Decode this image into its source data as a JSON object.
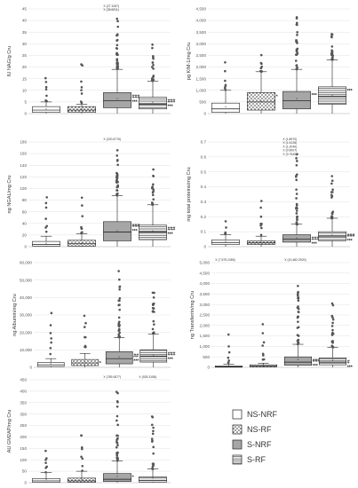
{
  "legend": [
    {
      "label": "NS-NRF",
      "pattern": "plain"
    },
    {
      "label": "NS-RF",
      "pattern": "dots"
    },
    {
      "label": "S-NRF",
      "pattern": "gray"
    },
    {
      "label": "S-RF",
      "pattern": "lines"
    }
  ],
  "chart_data": [
    {
      "type": "box",
      "ylabel": "IU NAG/g Cru",
      "ylim": [
        0,
        45
      ],
      "yticks": [
        "0",
        "5",
        "10",
        "15",
        "20",
        "25",
        "30",
        "35",
        "40",
        "45"
      ],
      "groups": [
        "NS-NRF",
        "NS-RF",
        "S-NRF",
        "S-RF"
      ],
      "boxes": [
        {
          "q1": 0.5,
          "median": 1.5,
          "q3": 3,
          "wlo": 0,
          "whi": 5,
          "mean": 2
        },
        {
          "q1": 0.5,
          "median": 1.5,
          "q3": 3,
          "wlo": 0,
          "whi": 4,
          "mean": 2
        },
        {
          "q1": 2.5,
          "median": 5.5,
          "q3": 9,
          "wlo": 0,
          "whi": 19,
          "mean": 6.5
        },
        {
          "q1": 2,
          "median": 4,
          "q3": 7,
          "wlo": 0,
          "whi": 14,
          "mean": 5
        }
      ],
      "annotations": [
        {
          "group": 2,
          "text": "X (27.1067)"
        },
        {
          "group": 2,
          "text": "X (35.6811)"
        }
      ],
      "significance": [
        {
          "group": 2,
          "lines": [
            "###",
            "***"
          ]
        },
        {
          "group": 3,
          "lines": [
            "###",
            "***"
          ]
        }
      ]
    },
    {
      "type": "box",
      "ylabel": "pg KIM-1/mg Cru",
      "ylim": [
        0,
        4500
      ],
      "yticks": [
        "0",
        "500",
        "1,000",
        "1,500",
        "2,000",
        "2,500",
        "3,000",
        "3,500",
        "4,000",
        "4,500"
      ],
      "groups": [
        "NS-NRF",
        "NS-RF",
        "S-NRF",
        "S-RF"
      ],
      "boxes": [
        {
          "q1": 50,
          "median": 200,
          "q3": 450,
          "wlo": 0,
          "whi": 1000,
          "mean": 300
        },
        {
          "q1": 150,
          "median": 500,
          "q3": 900,
          "wlo": 0,
          "whi": 1800,
          "mean": 550
        },
        {
          "q1": 200,
          "median": 550,
          "q3": 950,
          "wlo": 0,
          "whi": 1900,
          "mean": 650
        },
        {
          "q1": 400,
          "median": 750,
          "q3": 1150,
          "wlo": 0,
          "whi": 2300,
          "mean": 800
        }
      ],
      "annotations": [],
      "significance": [
        {
          "group": 1,
          "lines": [
            "*"
          ]
        },
        {
          "group": 2,
          "lines": [
            "***"
          ]
        },
        {
          "group": 3,
          "lines": [
            "***"
          ]
        }
      ]
    },
    {
      "type": "box",
      "ylabel": "ng NGAL/mg Cru",
      "ylim": [
        0,
        180
      ],
      "yticks": [
        "0",
        "20",
        "40",
        "60",
        "80",
        "100",
        "120",
        "140",
        "160",
        "180"
      ],
      "groups": [
        "NS-NRF",
        "NS-RF",
        "S-NRF",
        "S-RF"
      ],
      "boxes": [
        {
          "q1": 1,
          "median": 4,
          "q3": 9,
          "wlo": 0,
          "whi": 18,
          "mean": 6
        },
        {
          "q1": 1,
          "median": 5,
          "q3": 11,
          "wlo": 0,
          "whi": 22,
          "mean": 7
        },
        {
          "q1": 10,
          "median": 25,
          "q3": 43,
          "wlo": 0,
          "whi": 88,
          "mean": 28
        },
        {
          "q1": 12,
          "median": 25,
          "q3": 37,
          "wlo": 0,
          "whi": 72,
          "mean": 27
        }
      ],
      "annotations": [
        {
          "group": 2,
          "text": "X (220.6776)"
        }
      ],
      "significance": [
        {
          "group": 2,
          "lines": [
            "###",
            "***"
          ]
        },
        {
          "group": 3,
          "lines": [
            "###",
            "***"
          ]
        }
      ]
    },
    {
      "type": "box",
      "ylabel": "mg total proteins/mg Cru",
      "ylim": [
        0,
        0.7
      ],
      "yticks": [
        "0",
        "0.1",
        "0.2",
        "0.3",
        "0.4",
        "0.5",
        "0.6",
        "0.7"
      ],
      "groups": [
        "NS-NRF",
        "NS-RF",
        "S-NRF",
        "S-RF"
      ],
      "boxes": [
        {
          "q1": 0.015,
          "median": 0.028,
          "q3": 0.045,
          "wlo": 0,
          "whi": 0.08,
          "mean": 0.035
        },
        {
          "q1": 0.015,
          "median": 0.025,
          "q3": 0.04,
          "wlo": 0,
          "whi": 0.07,
          "mean": 0.03
        },
        {
          "q1": 0.03,
          "median": 0.05,
          "q3": 0.08,
          "wlo": 0,
          "whi": 0.15,
          "mean": 0.06
        },
        {
          "q1": 0.04,
          "median": 0.07,
          "q3": 0.1,
          "wlo": 0,
          "whi": 0.19,
          "mean": 0.08
        }
      ],
      "annotations": [
        {
          "group": 2,
          "text": "X (1.8970)"
        },
        {
          "group": 2,
          "text": "X (1.5128)"
        },
        {
          "group": 2,
          "text": "X (1.2040)"
        },
        {
          "group": 2,
          "text": "X (0.9007)"
        },
        {
          "group": 2,
          "text": "X (0.7545)"
        }
      ],
      "significance": [
        {
          "group": 2,
          "lines": [
            "###",
            "***"
          ]
        },
        {
          "group": 3,
          "lines": [
            "###",
            "***"
          ]
        }
      ]
    },
    {
      "type": "box",
      "ylabel": "ng Albumin/mg Cru",
      "ylim": [
        0,
        60000
      ],
      "yticks": [
        "0",
        "10,000",
        "20,000",
        "30,000",
        "40,000",
        "50,000",
        "60,000"
      ],
      "groups": [
        "NS-NRF",
        "NS-RF",
        "S-NRF",
        "S-RF"
      ],
      "boxes": [
        {
          "q1": 500,
          "median": 1500,
          "q3": 2800,
          "wlo": 0,
          "whi": 5000,
          "mean": 2000
        },
        {
          "q1": 1000,
          "median": 2500,
          "q3": 4500,
          "wlo": 0,
          "whi": 8000,
          "mean": 3000
        },
        {
          "q1": 2000,
          "median": 5000,
          "q3": 9000,
          "wlo": 0,
          "whi": 17000,
          "mean": 6000
        },
        {
          "q1": 3000,
          "median": 6500,
          "q3": 10000,
          "wlo": 0,
          "whi": 19000,
          "mean": 7000
        }
      ],
      "annotations": [],
      "significance": [
        {
          "group": 1,
          "lines": [
            "*"
          ]
        },
        {
          "group": 2,
          "lines": [
            "##",
            "***"
          ]
        },
        {
          "group": 3,
          "lines": [
            "###",
            "***"
          ]
        }
      ]
    },
    {
      "type": "box",
      "ylabel": "ng Transferrin/mg Cru",
      "ylim": [
        0,
        5000
      ],
      "yticks": [
        "0",
        "500",
        "1,000",
        "1,500",
        "2,000",
        "2,500",
        "3,000",
        "3,500",
        "4,000",
        "4,500",
        "5,000"
      ],
      "groups": [
        "NS-NRF",
        "NS-RF",
        "S-NRF",
        "S-RF"
      ],
      "boxes": [
        {
          "q1": 10,
          "median": 30,
          "q3": 70,
          "wlo": 0,
          "whi": 150,
          "mean": 50
        },
        {
          "q1": 20,
          "median": 60,
          "q3": 120,
          "wlo": 0,
          "whi": 200,
          "mean": 80
        },
        {
          "q1": 100,
          "median": 250,
          "q3": 500,
          "wlo": 0,
          "whi": 1100,
          "mean": 400
        },
        {
          "q1": 120,
          "median": 250,
          "q3": 450,
          "wlo": 0,
          "whi": 950,
          "mean": 350
        }
      ],
      "annotations": [
        {
          "group": 0,
          "text": "X (7,579.2455)"
        },
        {
          "group": 2,
          "text": "X (10,482.0920)"
        }
      ],
      "significance": [
        {
          "group": 2,
          "lines": [
            "###",
            "***"
          ]
        },
        {
          "group": 3,
          "lines": [
            "#",
            "***"
          ]
        }
      ]
    },
    {
      "type": "box",
      "ylabel": "AU GM2AP/mg Cru",
      "ylim": [
        0,
        450
      ],
      "yticks": [
        "0",
        "50",
        "100",
        "150",
        "200",
        "250",
        "300",
        "350",
        "400",
        "450"
      ],
      "groups": [
        "NS-NRF",
        "NS-RF",
        "S-NRF",
        "S-RF"
      ],
      "boxes": [
        {
          "q1": 2,
          "median": 8,
          "q3": 18,
          "wlo": 0,
          "whi": 45,
          "mean": 15
        },
        {
          "q1": 2,
          "median": 8,
          "q3": 20,
          "wlo": 0,
          "whi": 50,
          "mean": 16
        },
        {
          "q1": 5,
          "median": 15,
          "q3": 40,
          "wlo": 0,
          "whi": 95,
          "mean": 28
        },
        {
          "q1": 3,
          "median": 10,
          "q3": 25,
          "wlo": 0,
          "whi": 60,
          "mean": 20
        }
      ],
      "annotations": [
        {
          "group": 2,
          "text": "X (789.0877)"
        },
        {
          "group": 3,
          "text": "X (925.3158)"
        }
      ],
      "significance": [
        {
          "group": 2,
          "lines": [
            "*"
          ]
        }
      ]
    }
  ]
}
